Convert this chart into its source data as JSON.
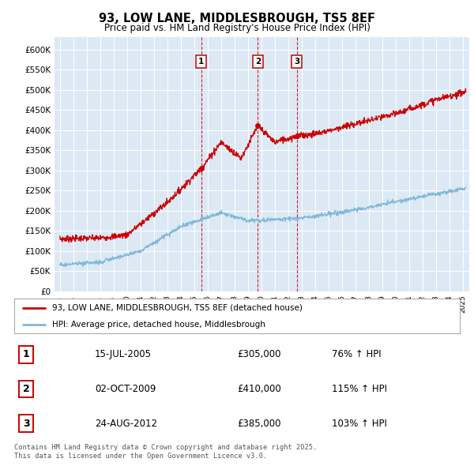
{
  "title": "93, LOW LANE, MIDDLESBROUGH, TS5 8EF",
  "subtitle": "Price paid vs. HM Land Registry's House Price Index (HPI)",
  "red_label": "93, LOW LANE, MIDDLESBROUGH, TS5 8EF (detached house)",
  "blue_label": "HPI: Average price, detached house, Middlesbrough",
  "transactions": [
    {
      "num": 1,
      "date": "15-JUL-2005",
      "price": "£305,000",
      "pct": "76% ↑ HPI",
      "year": 2005.54
    },
    {
      "num": 2,
      "date": "02-OCT-2009",
      "price": "£410,000",
      "pct": "115% ↑ HPI",
      "year": 2009.75
    },
    {
      "num": 3,
      "date": "24-AUG-2012",
      "price": "£385,000",
      "pct": "103% ↑ HPI",
      "year": 2012.65
    }
  ],
  "footer": "Contains HM Land Registry data © Crown copyright and database right 2025.\nThis data is licensed under the Open Government Licence v3.0.",
  "background_color": "#dce9f5",
  "ylim": [
    0,
    630000
  ],
  "xlim_start": 1994.6,
  "xlim_end": 2025.5,
  "yticks": [
    0,
    50000,
    100000,
    150000,
    200000,
    250000,
    300000,
    350000,
    400000,
    450000,
    500000,
    550000,
    600000
  ],
  "ytick_labels": [
    "£0",
    "£50K",
    "£100K",
    "£150K",
    "£200K",
    "£250K",
    "£300K",
    "£350K",
    "£400K",
    "£450K",
    "£500K",
    "£550K",
    "£600K"
  ],
  "xticks": [
    1995,
    1996,
    1997,
    1998,
    1999,
    2000,
    2001,
    2002,
    2003,
    2004,
    2005,
    2006,
    2007,
    2008,
    2009,
    2010,
    2011,
    2012,
    2013,
    2014,
    2015,
    2016,
    2017,
    2018,
    2019,
    2020,
    2021,
    2022,
    2023,
    2024,
    2025
  ]
}
